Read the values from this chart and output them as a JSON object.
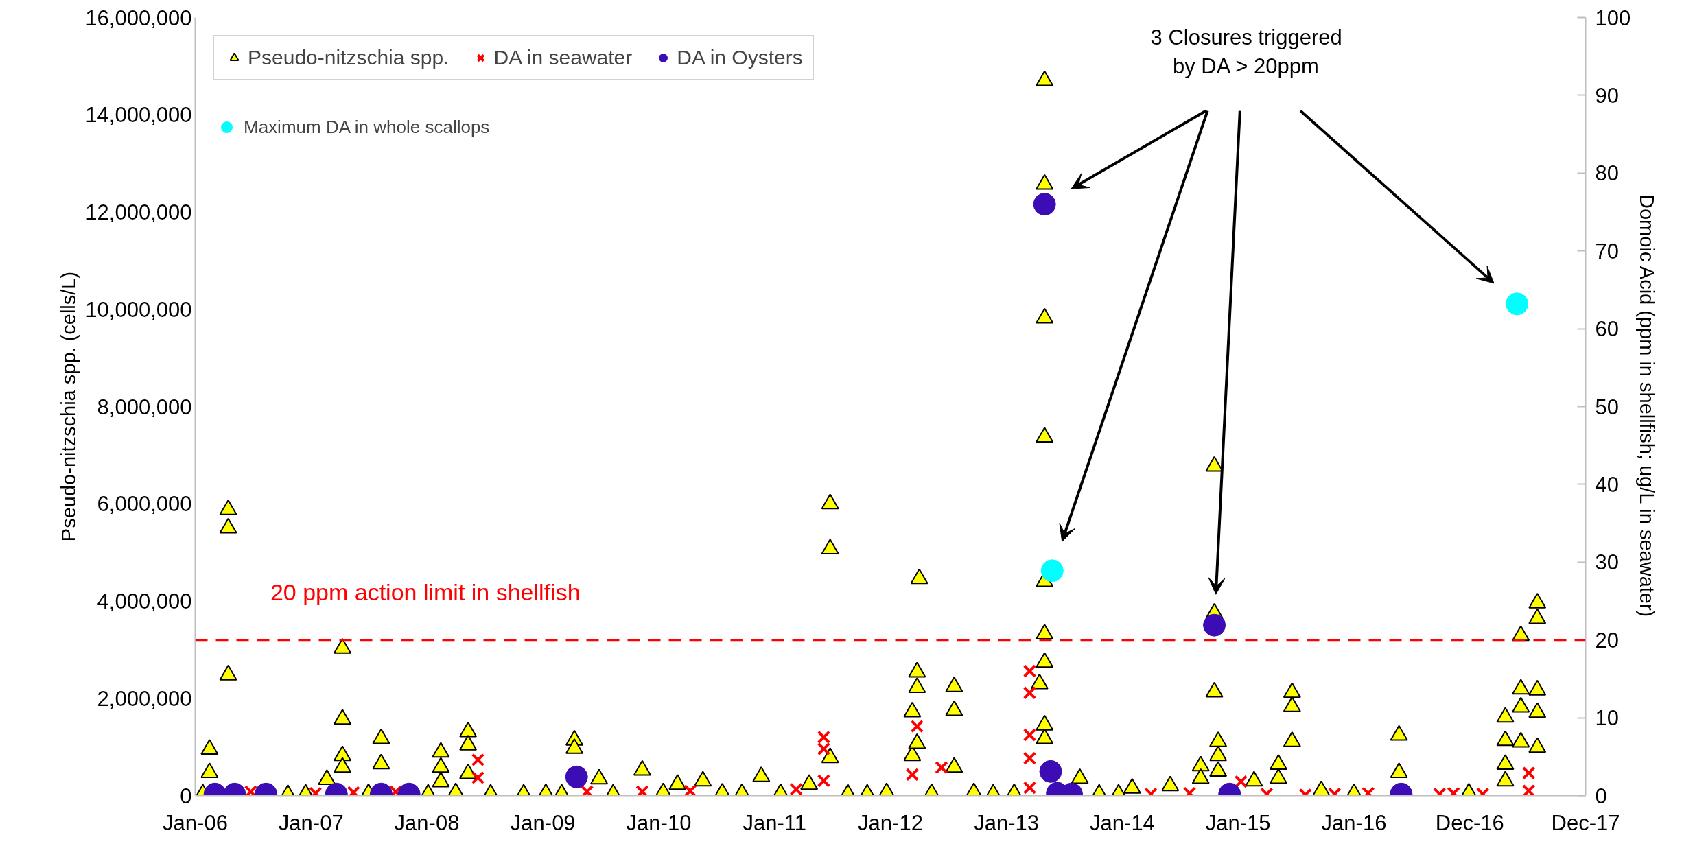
{
  "chart_data": {
    "type": "scatter",
    "ylabel": "Pseudo-nitzschia spp. (cells/L)",
    "y2label": "Domoic Acid (ppm in shellfish; ug/L in seawater)",
    "xlim": [
      "2006-01-01",
      "2017-12-31"
    ],
    "xticks": [
      {
        "value": "2006-01-01",
        "label": "Jan-06"
      },
      {
        "value": "2007-01-01",
        "label": "Jan-07"
      },
      {
        "value": "2008-01-01",
        "label": "Jan-08"
      },
      {
        "value": "2009-01-01",
        "label": "Jan-09"
      },
      {
        "value": "2010-01-01",
        "label": "Jan-10"
      },
      {
        "value": "2011-01-01",
        "label": "Jan-11"
      },
      {
        "value": "2012-01-01",
        "label": "Jan-12"
      },
      {
        "value": "2013-01-01",
        "label": "Jan-13"
      },
      {
        "value": "2014-01-01",
        "label": "Jan-14"
      },
      {
        "value": "2015-01-01",
        "label": "Jan-15"
      },
      {
        "value": "2016-01-01",
        "label": "Jan-16"
      },
      {
        "value": "2016-12-31",
        "label": "Dec-16"
      },
      {
        "value": "2017-12-31",
        "label": "Dec-17"
      }
    ],
    "ylim": [
      0,
      16000000
    ],
    "yticks": [
      0,
      {
        "value": 2000000,
        "label": "2,000,000"
      },
      {
        "value": 4000000,
        "label": "4,000,000"
      },
      {
        "value": 6000000,
        "label": "6,000,000"
      },
      {
        "value": 8000000,
        "label": "8,000,000"
      },
      {
        "value": 10000000,
        "label": "10,000,000"
      },
      {
        "value": 12000000,
        "label": "12,000,000"
      },
      {
        "value": 14000000,
        "label": "14,000,000"
      },
      {
        "value": 16000000,
        "label": "16,000,000"
      }
    ],
    "y2lim": [
      0,
      100
    ],
    "y2ticks": [
      0,
      10,
      20,
      30,
      40,
      50,
      60,
      70,
      80,
      90,
      100
    ],
    "legend": "top left",
    "ref_lines": [
      {
        "axis": "y2",
        "value": 20,
        "label": "20 ppm action limit in shellfish",
        "color": "#ff0000",
        "line_style": "dashed"
      }
    ],
    "annotations": [
      "3 Closures triggered\nby DA > 20ppm"
    ],
    "series": [
      {
        "name": "Pseudo-nitzschia spp.",
        "marker": "triangle",
        "color": "#ffff00",
        "x": [
          "2006-01-25",
          "2006-02-15",
          "2006-02-15",
          "2006-04-15",
          "2006-04-15",
          "2006-04-15",
          "2006-10-20",
          "2006-12-15",
          "2007-02-20",
          "2007-04-10",
          "2007-04-10",
          "2007-04-10",
          "2007-04-10",
          "2007-07-01",
          "2007-08-10",
          "2007-08-10",
          "2008-01-05",
          "2008-02-14",
          "2008-02-14",
          "2008-02-14",
          "2008-04-01",
          "2008-05-10",
          "2008-05-10",
          "2008-05-10",
          "2008-07-20",
          "2008-11-01",
          "2009-01-10",
          "2009-03-01",
          "2009-04-10",
          "2009-04-10",
          "2009-06-27",
          "2009-08-10",
          "2009-11-10",
          "2010-01-15",
          "2010-03-01",
          "2010-05-20",
          "2010-07-20",
          "2010-09-20",
          "2010-11-20",
          "2011-01-20",
          "2011-04-20",
          "2011-06-25",
          "2011-06-25",
          "2011-06-25",
          "2011-08-20",
          "2011-10-20",
          "2011-12-20",
          "2012-03-10",
          "2012-03-10",
          "2012-03-25",
          "2012-03-25",
          "2012-03-25",
          "2012-04-01",
          "2012-05-10",
          "2012-07-20",
          "2012-07-20",
          "2012-07-20",
          "2012-09-20",
          "2012-11-20",
          "2013-01-25",
          "2013-04-15",
          "2013-05-01",
          "2013-05-01",
          "2013-05-01",
          "2013-05-01",
          "2013-05-01",
          "2013-05-01",
          "2013-05-01",
          "2013-05-01",
          "2013-05-01",
          "2013-08-20",
          "2013-10-20",
          "2013-12-20",
          "2014-02-01",
          "2014-06-01",
          "2014-09-05",
          "2014-09-05",
          "2014-10-18",
          "2014-10-18",
          "2014-10-18",
          "2014-10-30",
          "2014-10-30",
          "2014-10-30",
          "2015-02-20",
          "2015-05-08",
          "2015-05-08",
          "2015-06-20",
          "2015-06-20",
          "2015-06-20",
          "2015-09-20",
          "2016-01-01",
          "2016-05-22",
          "2016-05-22",
          "2016-12-28",
          "2017-04-22",
          "2017-04-22",
          "2017-04-22",
          "2017-04-22",
          "2017-06-10",
          "2017-06-10",
          "2017-06-10",
          "2017-06-10",
          "2017-08-01",
          "2017-08-01",
          "2017-08-01",
          "2017-08-01",
          "2017-08-01"
        ],
        "values": [
          30000,
          950000,
          470000,
          5880000,
          5500000,
          2480000,
          20000,
          30000,
          330000,
          3030000,
          1570000,
          820000,
          580000,
          40000,
          1170000,
          650000,
          30000,
          890000,
          580000,
          280000,
          60000,
          1310000,
          1040000,
          450000,
          30000,
          30000,
          40000,
          30000,
          1140000,
          970000,
          340000,
          30000,
          520000,
          60000,
          230000,
          300000,
          50000,
          40000,
          390000,
          40000,
          230000,
          6000000,
          5070000,
          780000,
          30000,
          30000,
          60000,
          1720000,
          820000,
          2540000,
          2220000,
          1070000,
          4460000,
          40000,
          2240000,
          1750000,
          580000,
          60000,
          30000,
          40000,
          2300000,
          14700000,
          12570000,
          9820000,
          7370000,
          4400000,
          3320000,
          2740000,
          1450000,
          1170000,
          350000,
          30000,
          30000,
          150000,
          200000,
          610000,
          350000,
          6770000,
          3750000,
          2130000,
          1110000,
          820000,
          500000,
          300000,
          640000,
          350000,
          2120000,
          1830000,
          1110000,
          100000,
          40000,
          1240000,
          470000,
          50000,
          1610000,
          1130000,
          640000,
          300000,
          3290000,
          2190000,
          1820000,
          1100000,
          3960000,
          3640000,
          2170000,
          1710000,
          990000
        ]
      },
      {
        "name": "DA in seawater",
        "marker": "cross",
        "color": "#ff0000",
        "axis": "y2",
        "x": [
          "2006-06-25",
          "2007-01-15",
          "2007-05-15",
          "2007-09-25",
          "2008-06-10",
          "2008-06-10",
          "2009-05-20",
          "2009-11-10",
          "2010-04-10",
          "2011-03-10",
          "2011-06-05",
          "2011-06-05",
          "2011-06-05",
          "2012-03-10",
          "2012-03-25",
          "2012-06-10",
          "2013-03-15",
          "2013-03-15",
          "2013-03-15",
          "2013-03-15",
          "2013-03-15",
          "2014-04-01",
          "2014-08-01",
          "2015-01-10",
          "2015-04-01",
          "2015-08-01",
          "2015-11-01",
          "2016-02-15",
          "2016-09-27",
          "2016-11-10",
          "2017-02-10",
          "2017-07-05",
          "2017-07-05"
        ],
        "values": [
          0.5,
          0.3,
          0.4,
          0.5,
          4.6,
          2.3,
          0.5,
          0.5,
          0.6,
          0.8,
          7.5,
          6.0,
          1.9,
          2.7,
          8.9,
          3.6,
          16.0,
          13.2,
          7.8,
          4.8,
          1.0,
          0.2,
          0.3,
          1.8,
          0.2,
          0.1,
          0.2,
          0.3,
          0.2,
          0.3,
          0.2,
          2.9,
          0.6
        ]
      },
      {
        "name": "DA in Oysters",
        "marker": "circle",
        "color": "#3c0cb4",
        "axis": "y2",
        "x": [
          "2006-03-04",
          "2006-05-05",
          "2006-08-12",
          "2007-03-22",
          "2007-08-10",
          "2007-11-06",
          "2009-04-17",
          "2013-05-01",
          "2013-05-20",
          "2013-06-10",
          "2013-07-25",
          "2014-10-18",
          "2014-12-05",
          "2016-05-29"
        ],
        "values": [
          0.2,
          0.2,
          0.2,
          0.2,
          0.2,
          0.2,
          2.4,
          76.0,
          3.1,
          0.3,
          0.2,
          21.9,
          0.2,
          0.2
        ]
      },
      {
        "name": "Maximum DA in whole scallops",
        "marker": "circle",
        "color": "#00ffff",
        "axis": "y2",
        "x": [
          "2013-05-25",
          "2017-05-29"
        ],
        "values": [
          28.9,
          63.2
        ]
      }
    ]
  }
}
